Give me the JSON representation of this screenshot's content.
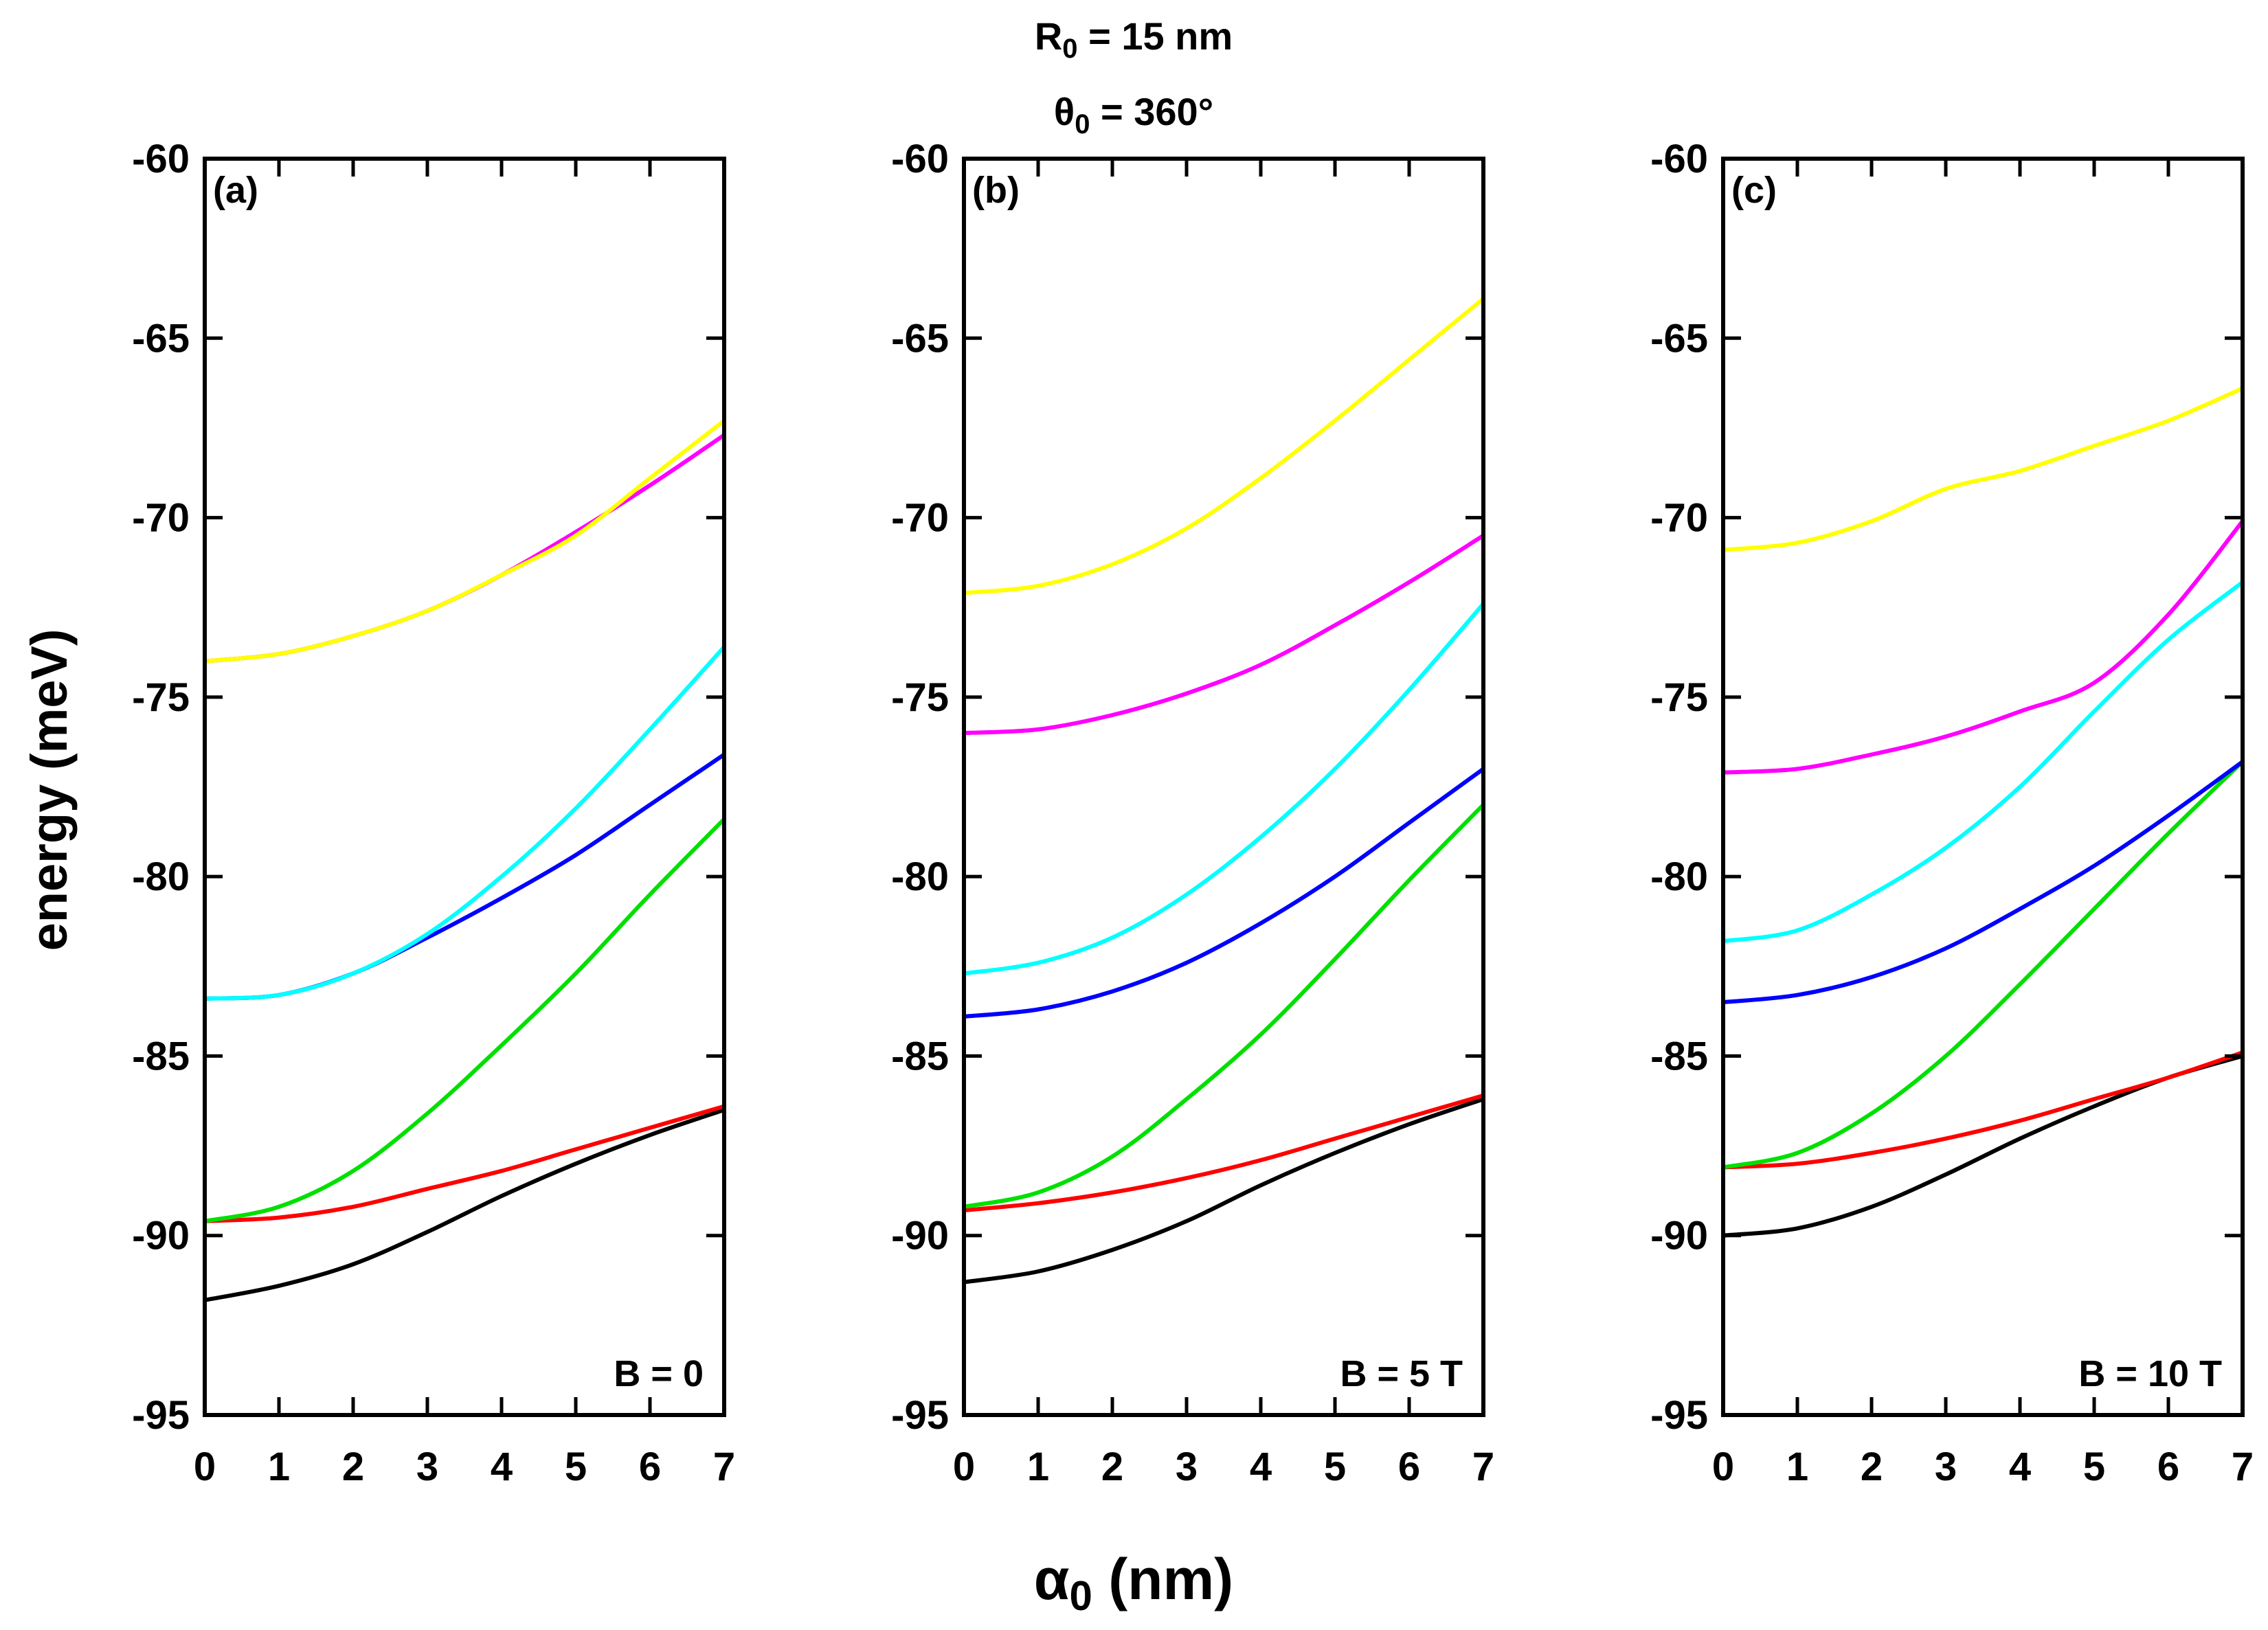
{
  "header": {
    "r0": {
      "sym": "R",
      "sub": "0",
      "rest": " = 15 nm"
    },
    "theta0": {
      "sym": "θ",
      "sub": "0",
      "rest": " = 360°"
    }
  },
  "axis": {
    "ylabel": "energy (meV)",
    "xlabel": {
      "sym": "α",
      "sub": "0",
      "rest": " (nm)"
    }
  },
  "colors": {
    "black": "#000000",
    "red": "#ff0000",
    "green": "#00e000",
    "blue": "#0000ff",
    "cyan": "#00ffff",
    "magenta": "#ff00ff",
    "yellow": "#ffff00"
  },
  "chart_data": [
    {
      "type": "line",
      "panel": "(a)",
      "annotation": "B = 0",
      "xlabel": "α0 (nm)",
      "ylabel": "energy (meV)",
      "xlim": [
        0,
        7
      ],
      "ylim": [
        -95,
        -60
      ],
      "xticks": [
        0,
        1,
        2,
        3,
        4,
        5,
        6,
        7
      ],
      "yticks": [
        -60,
        -65,
        -70,
        -75,
        -80,
        -85,
        -90,
        -95
      ],
      "x": [
        0,
        1,
        2,
        3,
        4,
        5,
        6,
        7
      ],
      "series": [
        {
          "name": "black",
          "color": "#000000",
          "values": [
            -91.8,
            -91.4,
            -90.8,
            -89.9,
            -88.9,
            -88.0,
            -87.2,
            -86.5
          ]
        },
        {
          "name": "red",
          "color": "#ff0000",
          "values": [
            -89.6,
            -89.5,
            -89.2,
            -88.7,
            -88.2,
            -87.6,
            -87.0,
            -86.4
          ]
        },
        {
          "name": "green",
          "color": "#00e000",
          "values": [
            -89.6,
            -89.2,
            -88.2,
            -86.6,
            -84.7,
            -82.7,
            -80.5,
            -78.4
          ]
        },
        {
          "name": "blue",
          "color": "#0000ff",
          "values": [
            -83.4,
            -83.3,
            -82.7,
            -81.7,
            -80.6,
            -79.4,
            -78.0,
            -76.6
          ]
        },
        {
          "name": "cyan",
          "color": "#00ffff",
          "values": [
            -83.4,
            -83.3,
            -82.7,
            -81.6,
            -80.0,
            -78.1,
            -75.9,
            -73.6
          ]
        },
        {
          "name": "magenta",
          "color": "#ff00ff",
          "values": [
            -74.0,
            -73.8,
            -73.3,
            -72.6,
            -71.6,
            -70.4,
            -69.1,
            -67.7
          ]
        },
        {
          "name": "yellow",
          "color": "#ffff00",
          "values": [
            -74.0,
            -73.8,
            -73.3,
            -72.6,
            -71.6,
            -70.5,
            -68.9,
            -67.3
          ]
        }
      ]
    },
    {
      "type": "line",
      "panel": "(b)",
      "annotation": "B = 5 T",
      "xlabel": "α0 (nm)",
      "ylabel": "energy (meV)",
      "xlim": [
        0,
        7
      ],
      "ylim": [
        -95,
        -60
      ],
      "xticks": [
        0,
        1,
        2,
        3,
        4,
        5,
        6,
        7
      ],
      "yticks": [
        -60,
        -65,
        -70,
        -75,
        -80,
        -85,
        -90,
        -95
      ],
      "x": [
        0,
        1,
        2,
        3,
        4,
        5,
        6,
        7
      ],
      "series": [
        {
          "name": "black",
          "color": "#000000",
          "values": [
            -91.3,
            -91.0,
            -90.4,
            -89.6,
            -88.6,
            -87.7,
            -86.9,
            -86.2
          ]
        },
        {
          "name": "red",
          "color": "#ff0000",
          "values": [
            -89.3,
            -89.1,
            -88.8,
            -88.4,
            -87.9,
            -87.3,
            -86.7,
            -86.1
          ]
        },
        {
          "name": "green",
          "color": "#00e000",
          "values": [
            -89.2,
            -88.8,
            -87.8,
            -86.2,
            -84.4,
            -82.3,
            -80.1,
            -78.0
          ]
        },
        {
          "name": "blue",
          "color": "#0000ff",
          "values": [
            -83.9,
            -83.7,
            -83.2,
            -82.4,
            -81.3,
            -80.0,
            -78.5,
            -77.0
          ]
        },
        {
          "name": "cyan",
          "color": "#00ffff",
          "values": [
            -82.7,
            -82.4,
            -81.7,
            -80.5,
            -78.9,
            -77.0,
            -74.8,
            -72.4
          ]
        },
        {
          "name": "magenta",
          "color": "#ff00ff",
          "values": [
            -76.0,
            -75.9,
            -75.5,
            -74.9,
            -74.1,
            -73.0,
            -71.8,
            -70.5
          ]
        },
        {
          "name": "yellow",
          "color": "#ffff00",
          "values": [
            -72.1,
            -71.9,
            -71.3,
            -70.3,
            -68.9,
            -67.3,
            -65.6,
            -63.9
          ]
        }
      ]
    },
    {
      "type": "line",
      "panel": "(c)",
      "annotation": "B = 10 T",
      "xlabel": "α0 (nm)",
      "ylabel": "energy (meV)",
      "xlim": [
        0,
        7
      ],
      "ylim": [
        -95,
        -60
      ],
      "xticks": [
        0,
        1,
        2,
        3,
        4,
        5,
        6,
        7
      ],
      "yticks": [
        -60,
        -65,
        -70,
        -75,
        -80,
        -85,
        -90,
        -95
      ],
      "x": [
        0,
        1,
        2,
        3,
        4,
        5,
        6,
        7
      ],
      "series": [
        {
          "name": "black",
          "color": "#000000",
          "values": [
            -90.0,
            -89.8,
            -89.2,
            -88.3,
            -87.3,
            -86.4,
            -85.6,
            -85.0
          ]
        },
        {
          "name": "red",
          "color": "#ff0000",
          "values": [
            -88.1,
            -88.0,
            -87.7,
            -87.3,
            -86.8,
            -86.2,
            -85.6,
            -84.9
          ]
        },
        {
          "name": "green",
          "color": "#00e000",
          "values": [
            -88.1,
            -87.7,
            -86.6,
            -85.0,
            -83.0,
            -80.9,
            -78.8,
            -76.8
          ]
        },
        {
          "name": "blue",
          "color": "#0000ff",
          "values": [
            -83.5,
            -83.3,
            -82.8,
            -82.0,
            -80.9,
            -79.7,
            -78.3,
            -76.8
          ]
        },
        {
          "name": "cyan",
          "color": "#00ffff",
          "values": [
            -81.8,
            -81.5,
            -80.5,
            -79.2,
            -77.5,
            -75.4,
            -73.4,
            -71.8
          ]
        },
        {
          "name": "magenta",
          "color": "#ff00ff",
          "values": [
            -77.1,
            -77.0,
            -76.6,
            -76.1,
            -75.4,
            -74.6,
            -72.7,
            -70.1
          ]
        },
        {
          "name": "yellow",
          "color": "#ffff00",
          "values": [
            -70.9,
            -70.7,
            -70.1,
            -69.2,
            -68.7,
            -68.0,
            -67.3,
            -66.4
          ]
        }
      ]
    }
  ]
}
